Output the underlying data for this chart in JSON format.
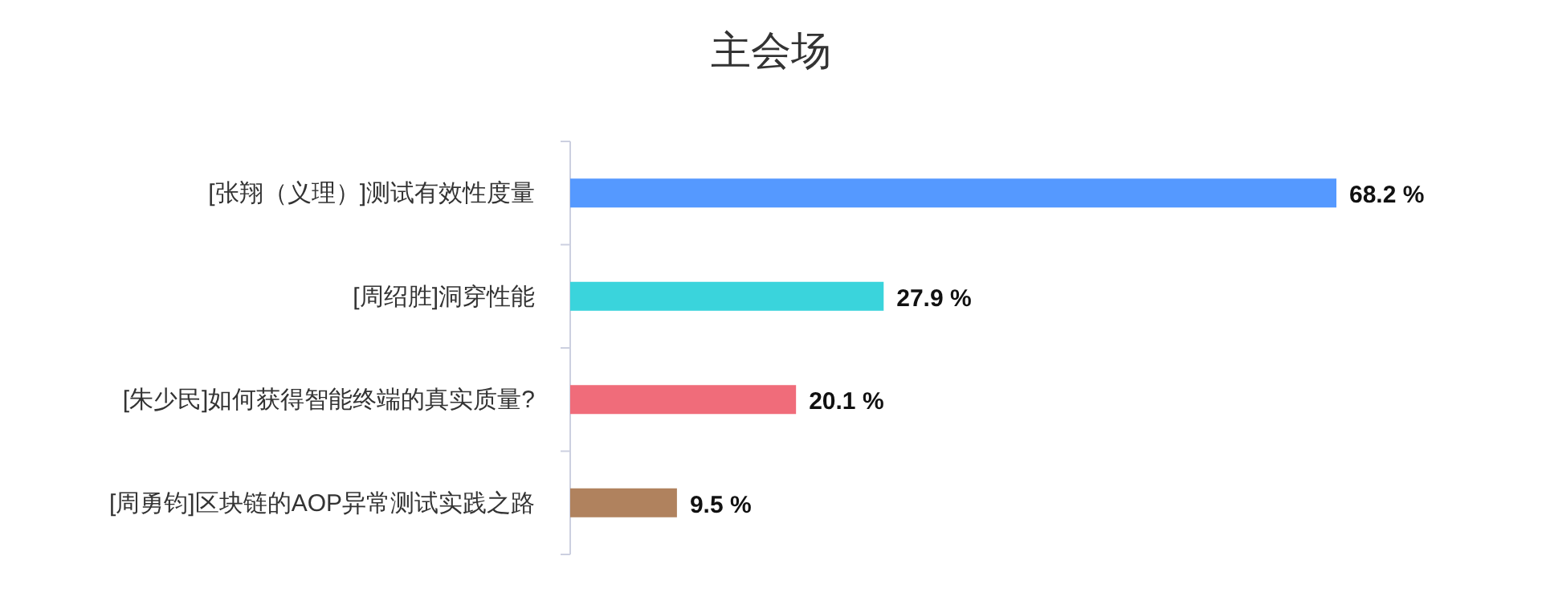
{
  "chart_data": {
    "type": "bar",
    "orientation": "horizontal",
    "title": "主会场",
    "categories": [
      "[张翔（义理）]测试有效性度量",
      "[周绍胜]洞穿性能",
      "[朱少民]如何获得智能终端的真实质量?",
      "[周勇钧]区块链的AOP异常测试实践之路"
    ],
    "values": [
      68.2,
      27.9,
      20.1,
      9.5
    ],
    "colors": [
      "#5599ff",
      "#3ad4dc",
      "#f06c7a",
      "#b0825e"
    ],
    "value_labels": [
      "68.2 %",
      "27.9 %",
      "20.1 %",
      "9.5 %"
    ]
  }
}
